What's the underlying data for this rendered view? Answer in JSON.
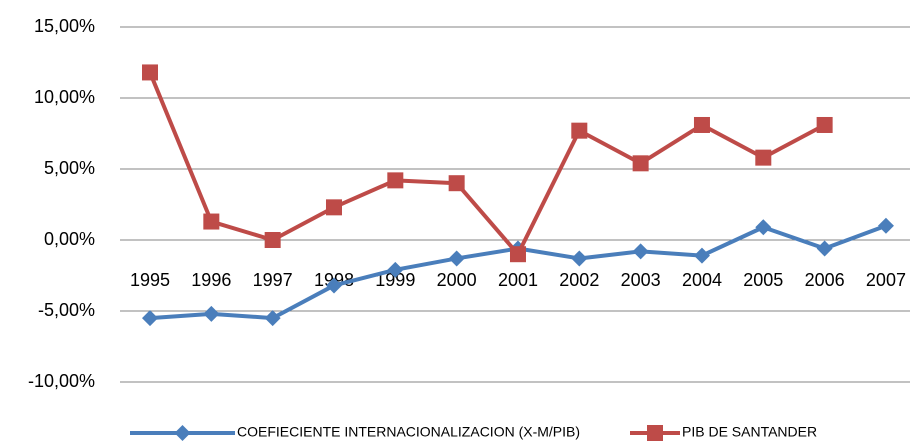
{
  "chart_data": {
    "type": "line",
    "categories": [
      "1995",
      "1996",
      "1997",
      "1998",
      "1999",
      "2000",
      "2001",
      "2002",
      "2003",
      "2004",
      "2005",
      "2006",
      "2007"
    ],
    "series": [
      {
        "name": "COEFIECIENTE INTERNACIONALIZACION  (X-M/PIB)",
        "color": "#4a7ebb",
        "marker": "diamond",
        "values": [
          -5.5,
          -5.2,
          -5.5,
          -3.2,
          -2.1,
          -1.3,
          -0.6,
          -1.3,
          -0.8,
          -1.1,
          0.9,
          -0.6,
          1.0
        ]
      },
      {
        "name": "PIB DE SANTANDER",
        "color": "#be4b48",
        "marker": "square",
        "values": [
          11.8,
          1.3,
          0.0,
          2.3,
          4.2,
          4.0,
          -1.0,
          7.7,
          5.4,
          8.1,
          5.8,
          8.1,
          null
        ]
      }
    ],
    "ylim": [
      -10,
      15
    ],
    "yticks": [
      {
        "value": -10,
        "label": "-10,00%"
      },
      {
        "value": -5,
        "label": "-5,00%"
      },
      {
        "value": 0,
        "label": "0,00%"
      },
      {
        "value": 5,
        "label": "5,00%"
      },
      {
        "value": 10,
        "label": "10,00%"
      },
      {
        "value": 15,
        "label": "15,00%"
      }
    ],
    "grid": true,
    "legend": "bottom"
  }
}
